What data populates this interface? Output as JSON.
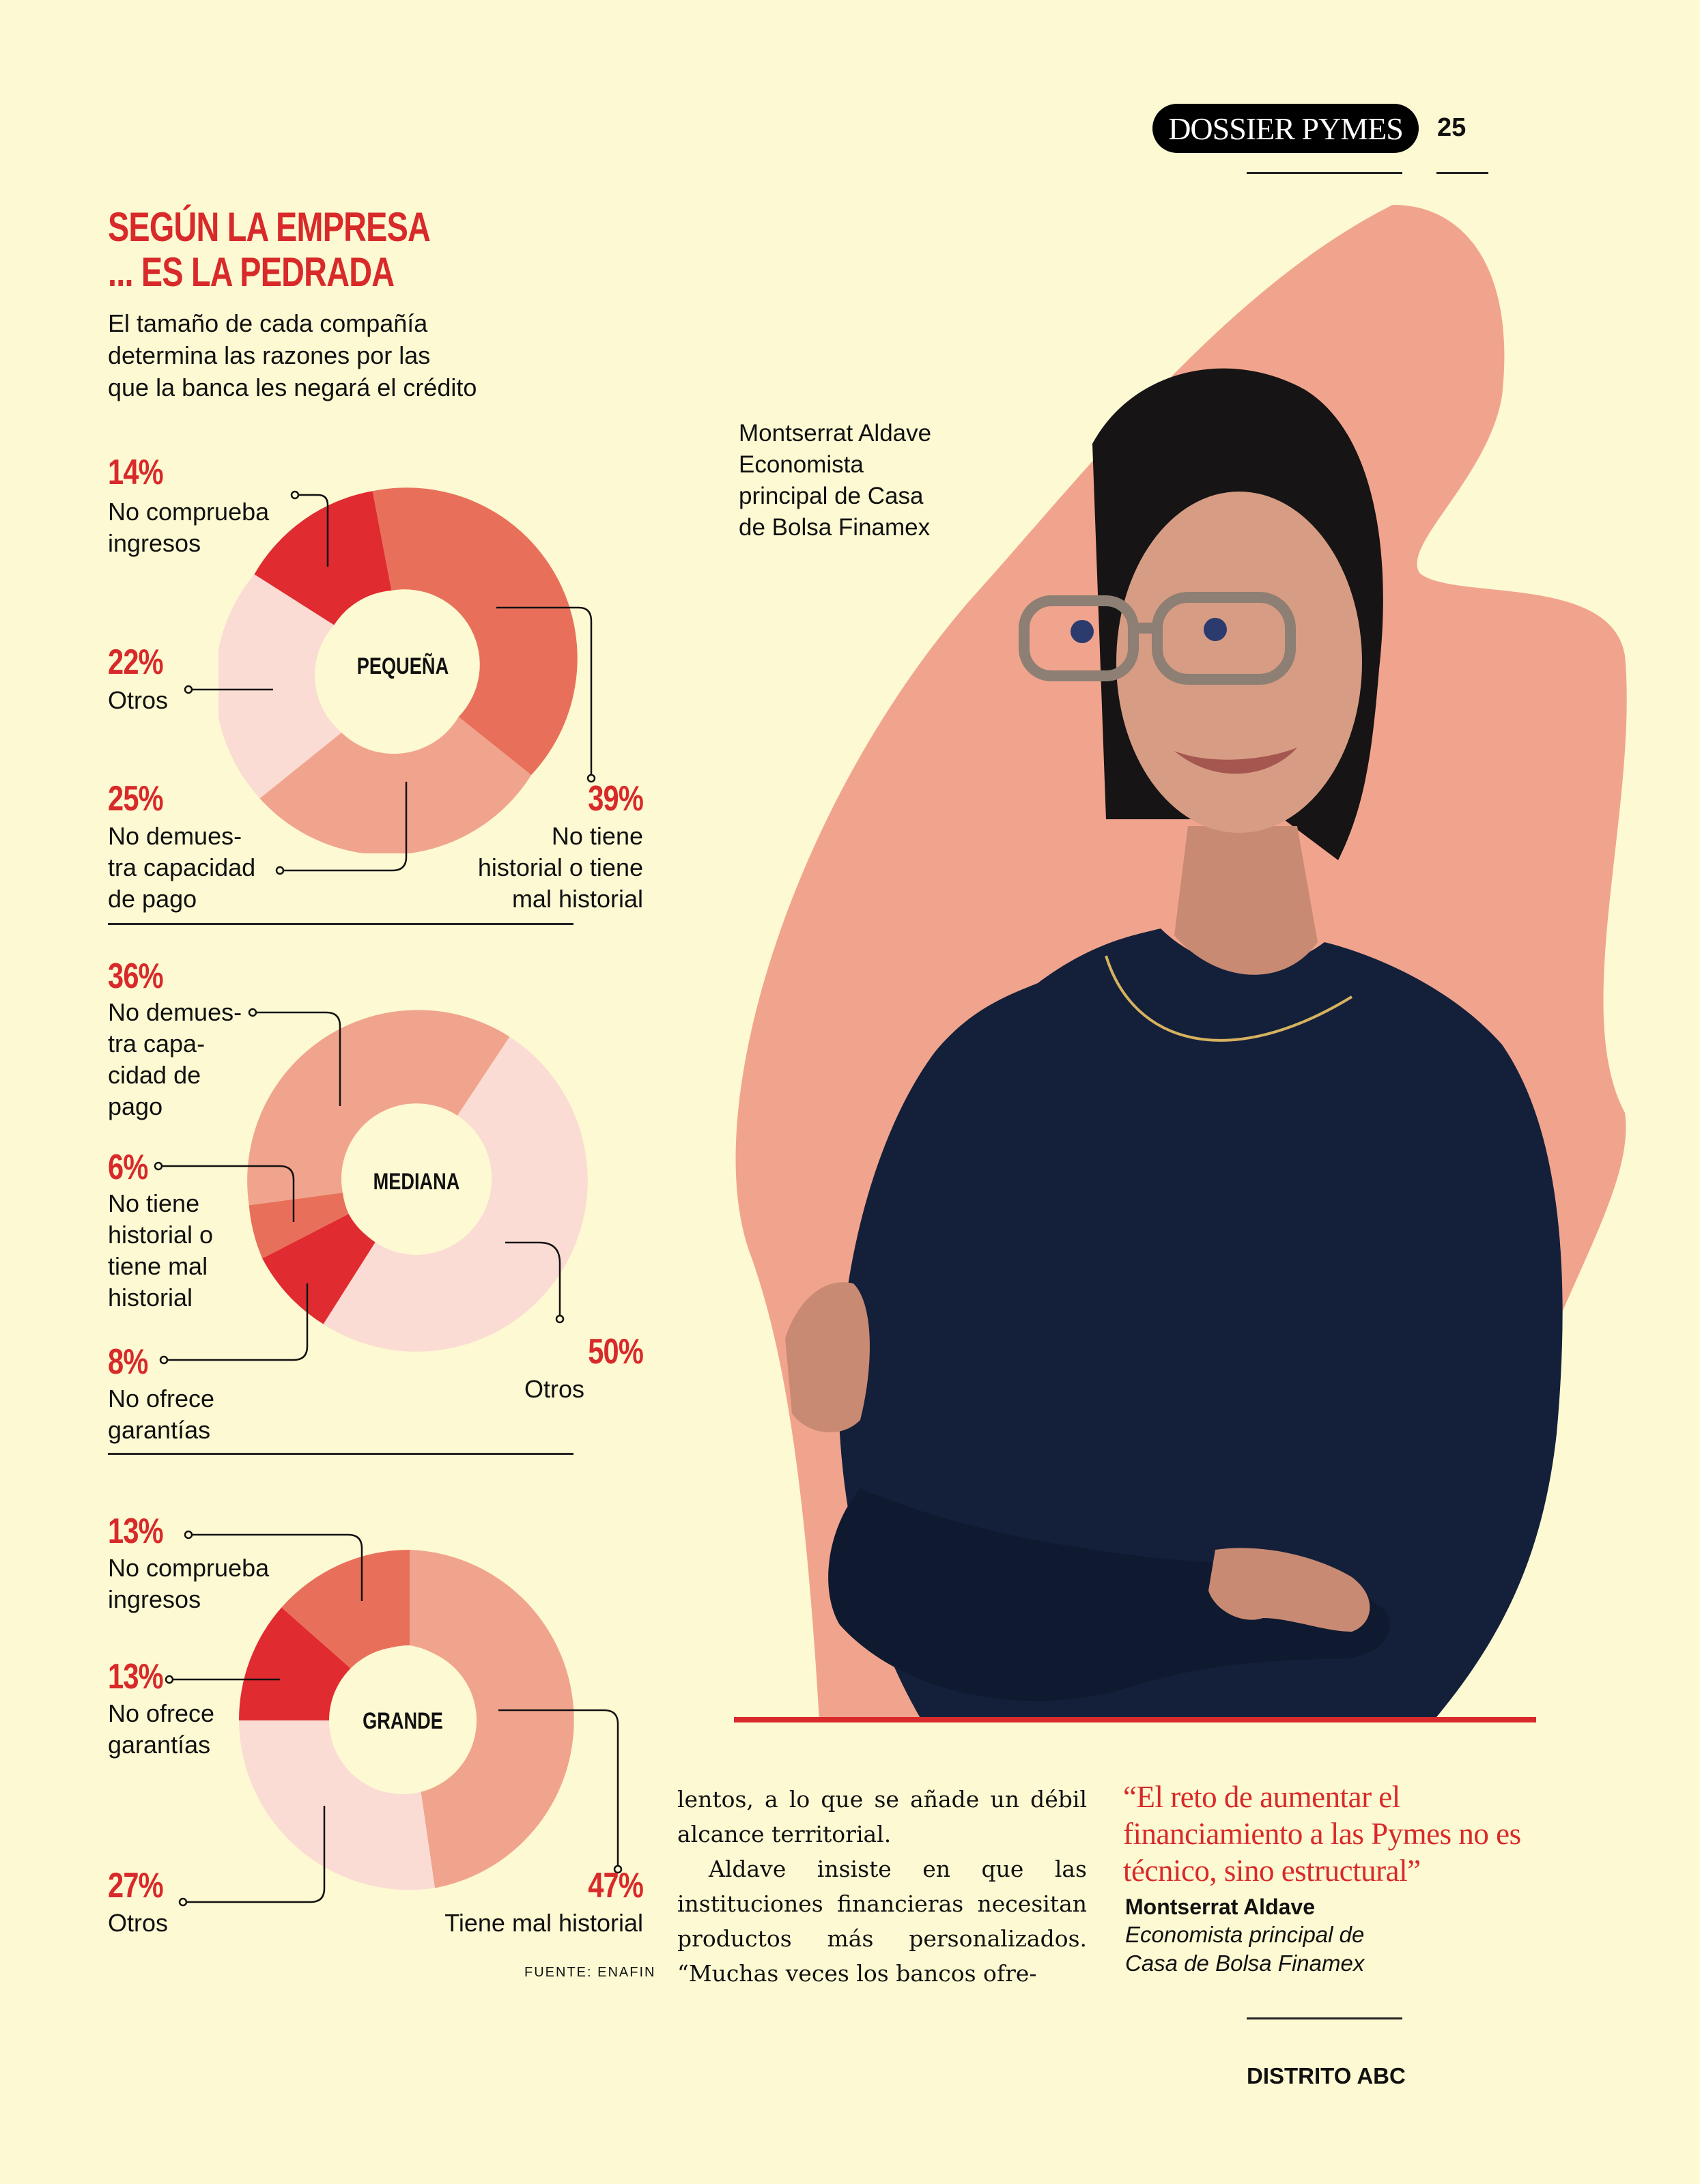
{
  "header": {
    "section": "DOSSIER PYMES",
    "page": "25"
  },
  "headline": {
    "line1": "SEGÚN LA EMPRESA",
    "line2": "... ES LA PEDRADA"
  },
  "intro": {
    "line1": "El tamaño de cada compañía",
    "line2": "determina las razones por las",
    "line3": "que la banca les negará el crédito"
  },
  "charts": {
    "pequena": {
      "center": "PEQUEÑA",
      "a": {
        "pct": "14%",
        "l1": "No comprueba",
        "l2": "ingresos"
      },
      "b": {
        "pct": "22%",
        "l1": "Otros"
      },
      "c": {
        "pct": "25%",
        "l1": "No demues-",
        "l2": "tra capacidad",
        "l3": "de pago"
      },
      "d": {
        "pct": "39%",
        "l1": "No tiene",
        "l2": "historial o tiene",
        "l3": "mal historial"
      }
    },
    "mediana": {
      "center": "MEDIANA",
      "a": {
        "pct": "36%",
        "l1": "No demues-",
        "l2": "tra capa-",
        "l3": "cidad de",
        "l4": "pago"
      },
      "b": {
        "pct": "6%",
        "l1": "No tiene",
        "l2": "historial o",
        "l3": "tiene mal",
        "l4": "historial"
      },
      "c": {
        "pct": "8%",
        "l1": "No ofrece",
        "l2": "garantías"
      },
      "d": {
        "pct": "50%",
        "l1": "Otros"
      }
    },
    "grande": {
      "center": "GRANDE",
      "a": {
        "pct": "13%",
        "l1": "No comprueba",
        "l2": "ingresos"
      },
      "b": {
        "pct": "13%",
        "l1": "No ofrece",
        "l2": "garantías"
      },
      "c": {
        "pct": "27%",
        "l1": "Otros"
      },
      "d": {
        "pct": "47%",
        "l1": "Tiene mal historial"
      }
    }
  },
  "source": "FUENTE: ENAFIN",
  "photo_caption": {
    "l1": "Montserrat Aldave",
    "l2": "Economista",
    "l3": "principal de Casa",
    "l4": "de Bolsa Finamex"
  },
  "body": {
    "p1": "lentos, a lo que se añade un débil alcance territorial.",
    "p2": "Aldave insiste en que las instituciones financieras necesitan productos más personalizados. “Muchas veces los bancos ofre-"
  },
  "pull_quote": {
    "text": "“El reto de aumentar el financiamiento a las Pymes no es técnico, sino estructural”",
    "name": "Montserrat Aldave",
    "role_l1": "Economista principal de",
    "role_l2": "Casa de Bolsa Finamex"
  },
  "footer": "DISTRITO ABC",
  "colors": {
    "red": "#d82a2a",
    "dark_salmon": "#e8705a",
    "salmon": "#f1a48d",
    "light_pink": "#fbdcd4",
    "cream": "#fdf9d2",
    "navy": "#14203a"
  }
}
